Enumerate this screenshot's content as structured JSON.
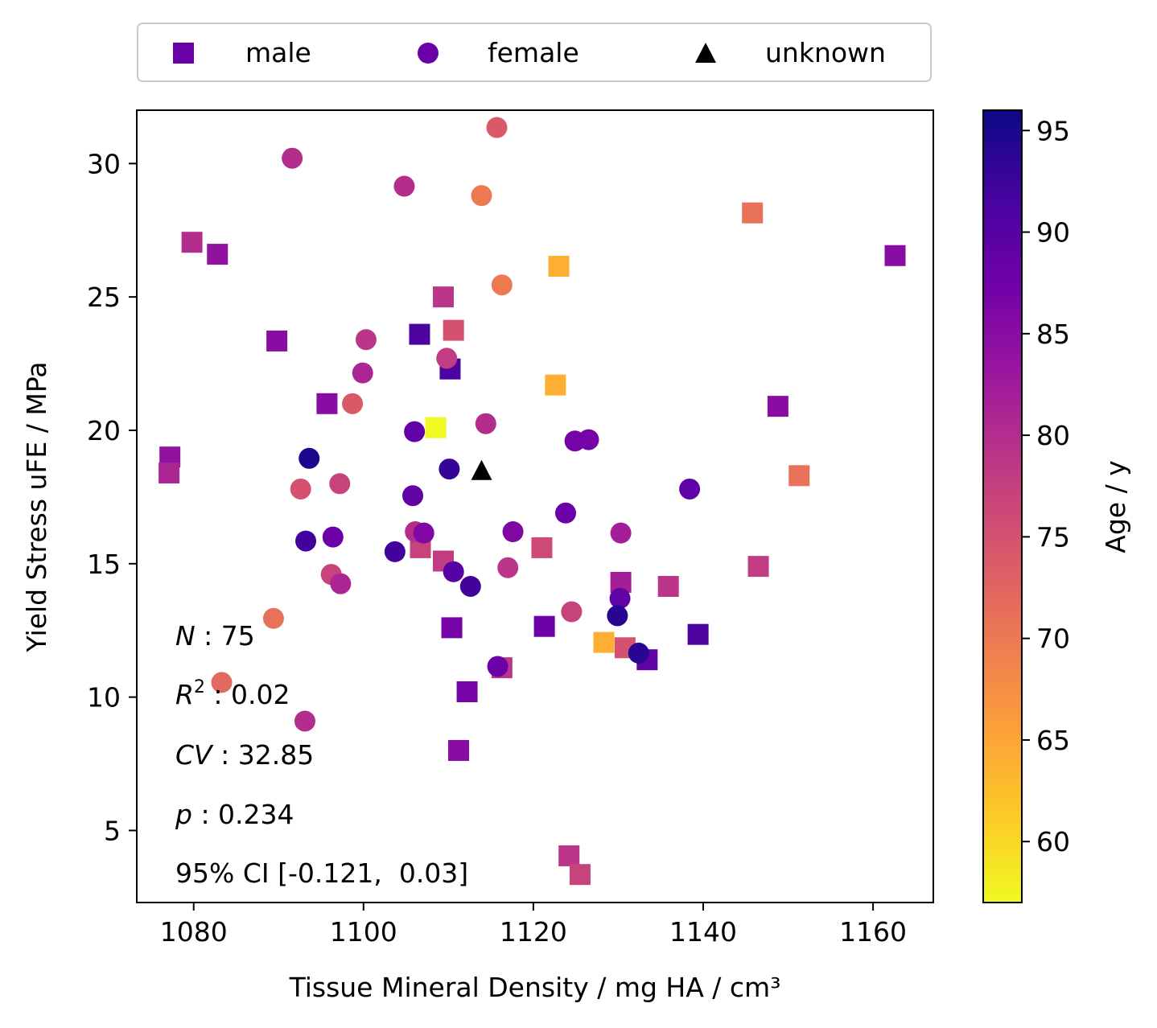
{
  "chart_data": {
    "type": "scatter",
    "xlabel": "Tissue Mineral Density / mg HA / cm³",
    "ylabel": "Yield Stress uFE / MPa",
    "xlim": [
      1073.3,
      1167.1
    ],
    "ylim": [
      2.3,
      32.0
    ],
    "xticks": [
      1080,
      1100,
      1120,
      1140,
      1160
    ],
    "yticks": [
      5,
      10,
      15,
      20,
      25,
      30
    ],
    "grid": false,
    "legend": {
      "placement": "top, above plot",
      "entries": [
        {
          "label": "male",
          "marker": "square",
          "color": "#6a00a8"
        },
        {
          "label": "female",
          "marker": "circle",
          "color": "#6a00a8"
        },
        {
          "label": "unknown",
          "marker": "triangle",
          "color": "#000000"
        }
      ]
    },
    "colorbar": {
      "label": "Age / y",
      "range": [
        57,
        96
      ],
      "ticks": [
        60,
        65,
        70,
        75,
        80,
        85,
        90,
        95
      ],
      "colormap": "plasma"
    },
    "annotations": {
      "n_label": "N",
      "n_value": " : 75",
      "r2_label": "R",
      "r2_sup": "2",
      "r2_value": " : 0.02",
      "cv_label": "CV",
      "cv_value": " : 32.85",
      "p_label": "p",
      "p_value": " : 0.234",
      "ci": "95% CI [-0.121,  0.03]"
    },
    "series": [
      {
        "name": "male",
        "marker": "square",
        "points": [
          {
            "x": 1079.8,
            "y": 27.05,
            "age": 80
          },
          {
            "x": 1082.8,
            "y": 26.6,
            "age": 84
          },
          {
            "x": 1077.2,
            "y": 19.0,
            "age": 84
          },
          {
            "x": 1077.1,
            "y": 18.4,
            "age": 81
          },
          {
            "x": 1089.8,
            "y": 23.35,
            "age": 85
          },
          {
            "x": 1095.7,
            "y": 21.0,
            "age": 85
          },
          {
            "x": 1106.6,
            "y": 23.6,
            "age": 91
          },
          {
            "x": 1109.4,
            "y": 25.0,
            "age": 79
          },
          {
            "x": 1110.6,
            "y": 23.75,
            "age": 75
          },
          {
            "x": 1110.2,
            "y": 22.3,
            "age": 91
          },
          {
            "x": 1108.5,
            "y": 20.1,
            "age": 57
          },
          {
            "x": 1106.7,
            "y": 15.6,
            "age": 77
          },
          {
            "x": 1109.4,
            "y": 15.1,
            "age": 78
          },
          {
            "x": 1110.4,
            "y": 12.6,
            "age": 87
          },
          {
            "x": 1112.2,
            "y": 10.2,
            "age": 87
          },
          {
            "x": 1111.2,
            "y": 8.0,
            "age": 85
          },
          {
            "x": 1116.3,
            "y": 11.1,
            "age": 79
          },
          {
            "x": 1121.0,
            "y": 15.6,
            "age": 76
          },
          {
            "x": 1121.3,
            "y": 12.65,
            "age": 88
          },
          {
            "x": 1122.6,
            "y": 21.7,
            "age": 64
          },
          {
            "x": 1123.0,
            "y": 26.15,
            "age": 64
          },
          {
            "x": 1128.3,
            "y": 12.05,
            "age": 64
          },
          {
            "x": 1130.3,
            "y": 14.3,
            "age": 82
          },
          {
            "x": 1130.8,
            "y": 11.85,
            "age": 75
          },
          {
            "x": 1133.4,
            "y": 11.4,
            "age": 89
          },
          {
            "x": 1135.9,
            "y": 14.15,
            "age": 79
          },
          {
            "x": 1139.4,
            "y": 12.35,
            "age": 91
          },
          {
            "x": 1145.8,
            "y": 28.15,
            "age": 71
          },
          {
            "x": 1146.5,
            "y": 14.9,
            "age": 78
          },
          {
            "x": 1148.8,
            "y": 20.9,
            "age": 85
          },
          {
            "x": 1151.3,
            "y": 18.3,
            "age": 71
          },
          {
            "x": 1162.6,
            "y": 26.55,
            "age": 85
          },
          {
            "x": 1124.2,
            "y": 4.05,
            "age": 79
          },
          {
            "x": 1125.5,
            "y": 3.35,
            "age": 77
          }
        ]
      },
      {
        "name": "female",
        "marker": "circle",
        "points": [
          {
            "x": 1091.6,
            "y": 30.2,
            "age": 80
          },
          {
            "x": 1104.8,
            "y": 29.15,
            "age": 80
          },
          {
            "x": 1115.7,
            "y": 31.35,
            "age": 74
          },
          {
            "x": 1113.9,
            "y": 28.8,
            "age": 70
          },
          {
            "x": 1116.3,
            "y": 25.45,
            "age": 70
          },
          {
            "x": 1100.3,
            "y": 23.4,
            "age": 79
          },
          {
            "x": 1109.8,
            "y": 22.7,
            "age": 78
          },
          {
            "x": 1099.9,
            "y": 22.15,
            "age": 81
          },
          {
            "x": 1098.7,
            "y": 21.0,
            "age": 74
          },
          {
            "x": 1114.4,
            "y": 20.25,
            "age": 80
          },
          {
            "x": 1106.0,
            "y": 19.95,
            "age": 89
          },
          {
            "x": 1124.9,
            "y": 19.6,
            "age": 87
          },
          {
            "x": 1126.5,
            "y": 19.65,
            "age": 87
          },
          {
            "x": 1093.6,
            "y": 18.95,
            "age": 95
          },
          {
            "x": 1110.1,
            "y": 18.55,
            "age": 93
          },
          {
            "x": 1092.6,
            "y": 17.8,
            "age": 75
          },
          {
            "x": 1097.2,
            "y": 18.0,
            "age": 77
          },
          {
            "x": 1105.8,
            "y": 17.55,
            "age": 89
          },
          {
            "x": 1138.4,
            "y": 17.8,
            "age": 89
          },
          {
            "x": 1123.8,
            "y": 16.9,
            "age": 88
          },
          {
            "x": 1117.6,
            "y": 16.2,
            "age": 86
          },
          {
            "x": 1130.3,
            "y": 16.15,
            "age": 82
          },
          {
            "x": 1096.4,
            "y": 16.0,
            "age": 88
          },
          {
            "x": 1093.2,
            "y": 15.85,
            "age": 92
          },
          {
            "x": 1106.1,
            "y": 16.2,
            "age": 80
          },
          {
            "x": 1107.1,
            "y": 16.15,
            "age": 86
          },
          {
            "x": 1103.7,
            "y": 15.45,
            "age": 92
          },
          {
            "x": 1117.0,
            "y": 14.85,
            "age": 79
          },
          {
            "x": 1096.2,
            "y": 14.6,
            "age": 77
          },
          {
            "x": 1097.3,
            "y": 14.25,
            "age": 81
          },
          {
            "x": 1110.6,
            "y": 14.7,
            "age": 90
          },
          {
            "x": 1112.6,
            "y": 14.15,
            "age": 92
          },
          {
            "x": 1130.2,
            "y": 13.7,
            "age": 89
          },
          {
            "x": 1124.5,
            "y": 13.2,
            "age": 77
          },
          {
            "x": 1129.9,
            "y": 13.05,
            "age": 94
          },
          {
            "x": 1089.4,
            "y": 12.95,
            "age": 71
          },
          {
            "x": 1132.4,
            "y": 11.65,
            "age": 94
          },
          {
            "x": 1115.8,
            "y": 11.15,
            "age": 88
          },
          {
            "x": 1083.3,
            "y": 10.55,
            "age": 72
          },
          {
            "x": 1093.1,
            "y": 9.1,
            "age": 80
          }
        ]
      },
      {
        "name": "unknown",
        "marker": "triangle",
        "points": [
          {
            "x": 1113.9,
            "y": 18.5
          }
        ]
      }
    ]
  }
}
